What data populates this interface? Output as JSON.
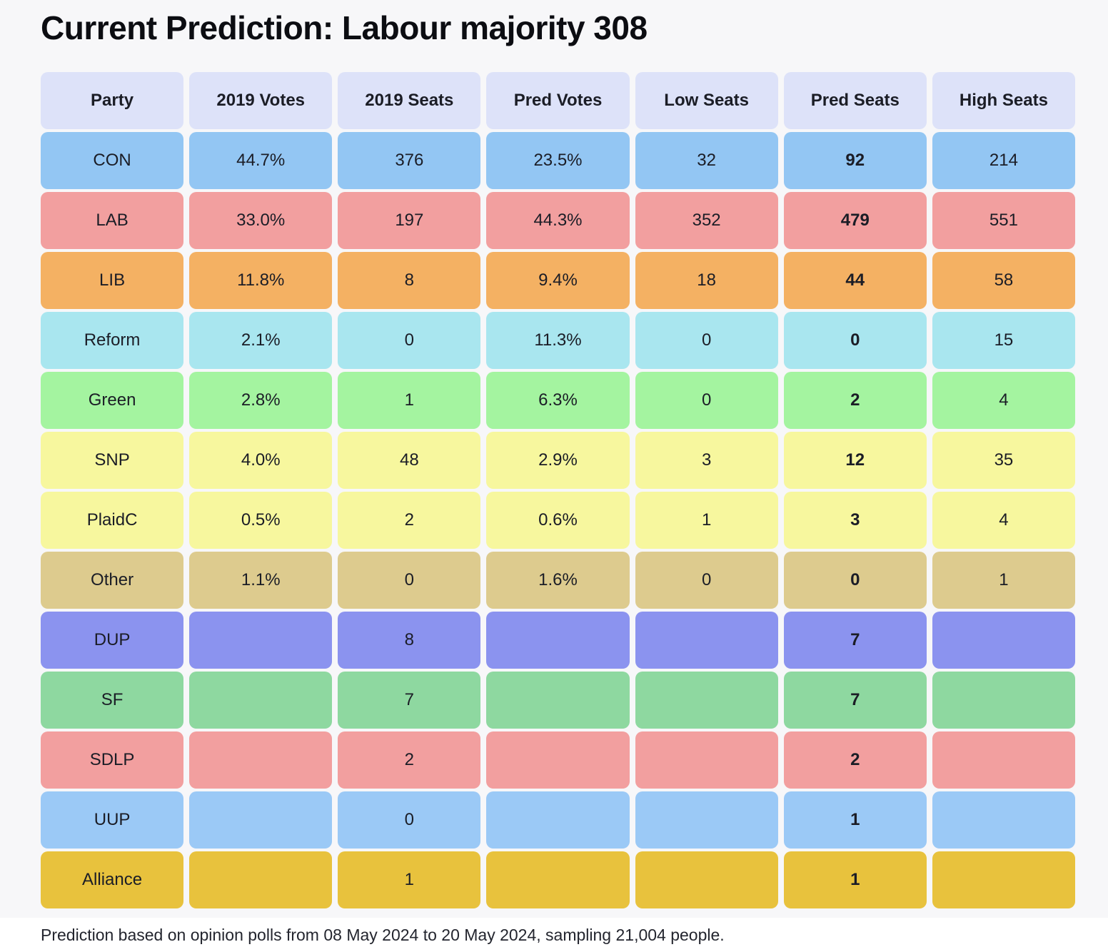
{
  "title": "Current Prediction: Labour majority 308",
  "footer_note": "Prediction based on opinion polls from 08 May 2024 to 20 May 2024, sampling 21,004 people.",
  "colors": {
    "page_bg": "#f7f7f9",
    "footer_bg": "#ffffff",
    "header_bg": "#dde2f9",
    "text": "#1b1d26"
  },
  "chart_data": {
    "type": "table",
    "title": "Current Prediction: Labour majority 308",
    "columns": [
      "Party",
      "2019 Votes",
      "2019 Seats",
      "Pred Votes",
      "Low Seats",
      "Pred Seats",
      "High Seats"
    ],
    "bold_column": "Pred Seats",
    "rows": [
      {
        "party": "CON",
        "color": "#93c6f3",
        "values": [
          "44.7%",
          "376",
          "23.5%",
          "32",
          "92",
          "214"
        ]
      },
      {
        "party": "LAB",
        "color": "#f29f9f",
        "values": [
          "33.0%",
          "197",
          "44.3%",
          "352",
          "479",
          "551"
        ]
      },
      {
        "party": "LIB",
        "color": "#f4b163",
        "values": [
          "11.8%",
          "8",
          "9.4%",
          "18",
          "44",
          "58"
        ]
      },
      {
        "party": "Reform",
        "color": "#a9e6ef",
        "values": [
          "2.1%",
          "0",
          "11.3%",
          "0",
          "0",
          "15"
        ]
      },
      {
        "party": "Green",
        "color": "#a4f4a0",
        "values": [
          "2.8%",
          "1",
          "6.3%",
          "0",
          "2",
          "4"
        ]
      },
      {
        "party": "SNP",
        "color": "#f7f79e",
        "values": [
          "4.0%",
          "48",
          "2.9%",
          "3",
          "12",
          "35"
        ]
      },
      {
        "party": "PlaidC",
        "color": "#f7f79e",
        "values": [
          "0.5%",
          "2",
          "0.6%",
          "1",
          "3",
          "4"
        ]
      },
      {
        "party": "Other",
        "color": "#ddcb8e",
        "values": [
          "1.1%",
          "0",
          "1.6%",
          "0",
          "0",
          "1"
        ]
      },
      {
        "party": "DUP",
        "color": "#8b93ef",
        "values": [
          "",
          "8",
          "",
          "",
          "7",
          ""
        ]
      },
      {
        "party": "SF",
        "color": "#8ed8a0",
        "values": [
          "",
          "7",
          "",
          "",
          "7",
          ""
        ]
      },
      {
        "party": "SDLP",
        "color": "#f29f9f",
        "values": [
          "",
          "2",
          "",
          "",
          "2",
          ""
        ]
      },
      {
        "party": "UUP",
        "color": "#9bc9f6",
        "values": [
          "",
          "0",
          "",
          "",
          "1",
          ""
        ]
      },
      {
        "party": "Alliance",
        "color": "#e8c23d",
        "values": [
          "",
          "1",
          "",
          "",
          "1",
          ""
        ]
      }
    ],
    "note": "Prediction based on opinion polls from 08 May 2024 to 20 May 2024, sampling 21,004 people."
  }
}
